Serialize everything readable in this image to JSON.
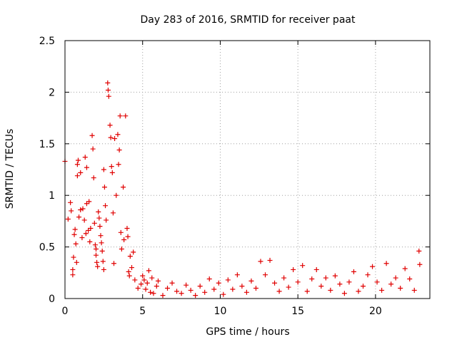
{
  "chart_data": {
    "type": "scatter",
    "title": "Day 283 of 2016, SRMTID for receiver paat",
    "xlabel": "GPS time / hours",
    "ylabel": "SRMTID / TECUs",
    "xlim": [
      0,
      23.5
    ],
    "ylim": [
      0,
      2.5
    ],
    "xticks": [
      0,
      5,
      10,
      15,
      20
    ],
    "yticks": [
      0,
      0.5,
      1,
      1.5,
      2,
      2.5
    ],
    "xtick_labels": [
      "0",
      "5",
      "10",
      "15",
      "20"
    ],
    "ytick_labels": [
      "0",
      "0.5",
      "1",
      "1.5",
      "2",
      "2.5"
    ],
    "grid": true,
    "marker": "+",
    "series_color": "#e00000",
    "series": [
      {
        "name": "SRMTID",
        "points": [
          [
            0.0,
            1.33
          ],
          [
            0.2,
            0.77
          ],
          [
            0.35,
            0.93
          ],
          [
            0.4,
            0.85
          ],
          [
            0.5,
            0.23
          ],
          [
            0.5,
            0.28
          ],
          [
            0.55,
            0.4
          ],
          [
            0.6,
            0.62
          ],
          [
            0.65,
            0.67
          ],
          [
            0.7,
            0.53
          ],
          [
            0.75,
            0.35
          ],
          [
            0.8,
            1.19
          ],
          [
            0.8,
            1.3
          ],
          [
            0.85,
            1.34
          ],
          [
            0.9,
            0.79
          ],
          [
            1.0,
            1.22
          ],
          [
            1.0,
            0.86
          ],
          [
            1.1,
            0.59
          ],
          [
            1.15,
            0.87
          ],
          [
            1.25,
            0.76
          ],
          [
            1.3,
            1.37
          ],
          [
            1.35,
            0.63
          ],
          [
            1.4,
            1.27
          ],
          [
            1.4,
            0.92
          ],
          [
            1.5,
            0.66
          ],
          [
            1.55,
            0.94
          ],
          [
            1.6,
            0.55
          ],
          [
            1.65,
            0.68
          ],
          [
            1.75,
            1.58
          ],
          [
            1.8,
            1.45
          ],
          [
            1.85,
            1.17
          ],
          [
            1.9,
            0.73
          ],
          [
            1.95,
            0.52
          ],
          [
            2.0,
            0.48
          ],
          [
            2.0,
            0.42
          ],
          [
            2.05,
            0.35
          ],
          [
            2.1,
            0.31
          ],
          [
            2.15,
            0.84
          ],
          [
            2.2,
            0.78
          ],
          [
            2.25,
            0.7
          ],
          [
            2.3,
            0.61
          ],
          [
            2.35,
            0.54
          ],
          [
            2.4,
            0.46
          ],
          [
            2.45,
            0.36
          ],
          [
            2.5,
            0.28
          ],
          [
            2.5,
            1.25
          ],
          [
            2.55,
            1.08
          ],
          [
            2.6,
            0.9
          ],
          [
            2.65,
            0.76
          ],
          [
            2.75,
            2.09
          ],
          [
            2.78,
            2.02
          ],
          [
            2.82,
            1.96
          ],
          [
            2.9,
            1.68
          ],
          [
            2.95,
            1.56
          ],
          [
            3.0,
            1.28
          ],
          [
            3.05,
            1.22
          ],
          [
            3.1,
            0.83
          ],
          [
            3.15,
            0.34
          ],
          [
            3.2,
            1.55
          ],
          [
            3.3,
            1.0
          ],
          [
            3.4,
            1.59
          ],
          [
            3.45,
            1.3
          ],
          [
            3.5,
            1.44
          ],
          [
            3.55,
            1.77
          ],
          [
            3.6,
            0.64
          ],
          [
            3.65,
            0.48
          ],
          [
            3.75,
            1.08
          ],
          [
            3.8,
            0.57
          ],
          [
            3.9,
            1.77
          ],
          [
            4.0,
            0.68
          ],
          [
            4.05,
            0.6
          ],
          [
            4.1,
            0.26
          ],
          [
            4.15,
            0.22
          ],
          [
            4.2,
            0.41
          ],
          [
            4.3,
            0.3
          ],
          [
            4.4,
            0.45
          ],
          [
            4.5,
            0.18
          ],
          [
            4.7,
            0.1
          ],
          [
            4.9,
            0.14
          ],
          [
            5.0,
            0.22
          ],
          [
            5.1,
            0.18
          ],
          [
            5.2,
            0.09
          ],
          [
            5.3,
            0.15
          ],
          [
            5.4,
            0.27
          ],
          [
            5.5,
            0.06
          ],
          [
            5.6,
            0.2
          ],
          [
            5.7,
            0.05
          ],
          [
            5.9,
            0.12
          ],
          [
            6.0,
            0.17
          ],
          [
            6.3,
            0.03
          ],
          [
            6.6,
            0.1
          ],
          [
            6.9,
            0.15
          ],
          [
            7.2,
            0.07
          ],
          [
            7.5,
            0.05
          ],
          [
            7.8,
            0.13
          ],
          [
            8.1,
            0.08
          ],
          [
            8.4,
            0.03
          ],
          [
            8.7,
            0.12
          ],
          [
            9.0,
            0.06
          ],
          [
            9.3,
            0.19
          ],
          [
            9.6,
            0.09
          ],
          [
            9.9,
            0.15
          ],
          [
            10.2,
            0.04
          ],
          [
            10.5,
            0.18
          ],
          [
            10.8,
            0.09
          ],
          [
            11.1,
            0.23
          ],
          [
            11.4,
            0.12
          ],
          [
            11.7,
            0.06
          ],
          [
            12.0,
            0.17
          ],
          [
            12.3,
            0.1
          ],
          [
            12.6,
            0.36
          ],
          [
            12.9,
            0.23
          ],
          [
            13.2,
            0.37
          ],
          [
            13.5,
            0.15
          ],
          [
            13.8,
            0.07
          ],
          [
            14.1,
            0.2
          ],
          [
            14.4,
            0.11
          ],
          [
            14.7,
            0.28
          ],
          [
            15.0,
            0.16
          ],
          [
            15.3,
            0.32
          ],
          [
            15.6,
            0.07
          ],
          [
            15.9,
            0.19
          ],
          [
            16.2,
            0.28
          ],
          [
            16.5,
            0.12
          ],
          [
            16.8,
            0.2
          ],
          [
            17.1,
            0.08
          ],
          [
            17.4,
            0.22
          ],
          [
            17.7,
            0.14
          ],
          [
            18.0,
            0.05
          ],
          [
            18.3,
            0.16
          ],
          [
            18.6,
            0.26
          ],
          [
            18.9,
            0.07
          ],
          [
            19.2,
            0.12
          ],
          [
            19.5,
            0.23
          ],
          [
            19.8,
            0.31
          ],
          [
            20.1,
            0.16
          ],
          [
            20.4,
            0.08
          ],
          [
            20.7,
            0.34
          ],
          [
            21.0,
            0.14
          ],
          [
            21.3,
            0.2
          ],
          [
            21.6,
            0.1
          ],
          [
            21.9,
            0.29
          ],
          [
            22.2,
            0.19
          ],
          [
            22.5,
            0.08
          ],
          [
            22.8,
            0.46
          ],
          [
            22.85,
            0.33
          ]
        ]
      }
    ]
  }
}
